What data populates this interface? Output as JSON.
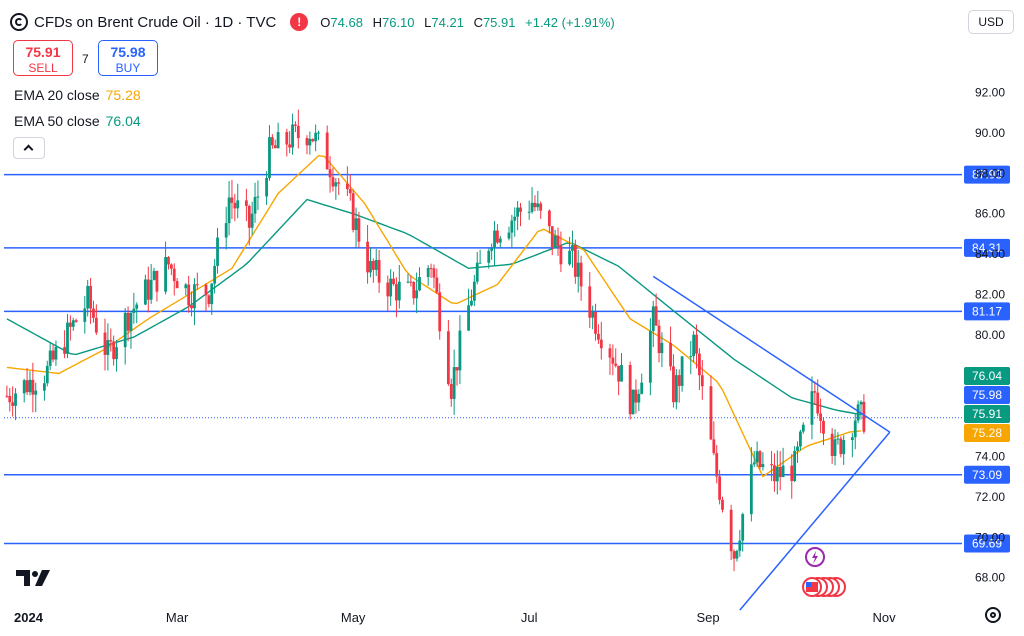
{
  "header": {
    "title": "CFDs on Brent Crude Oil · 1D · TVC",
    "warn_glyph": "!",
    "o_label": "O",
    "o_value": "74.68",
    "h_label": "H",
    "h_value": "76.10",
    "l_label": "L",
    "l_value": "74.21",
    "c_label": "C",
    "c_value": "75.91",
    "change": "+1.42 (+1.91%)"
  },
  "trade": {
    "sell_price": "75.91",
    "sell_label": "SELL",
    "spread": "7",
    "buy_price": "75.98",
    "buy_label": "BUY"
  },
  "indicators": {
    "ema20_label": "EMA 20 close",
    "ema20_value": "75.28",
    "ema50_label": "EMA 50 close",
    "ema50_value": "76.04"
  },
  "currency": "USD",
  "colors": {
    "up": "#089981",
    "down": "#f23645",
    "ema20": "#f7a600",
    "ema50": "#089981",
    "lines": "#2962ff"
  },
  "chart_data": {
    "type": "candlestick",
    "title": "CFDs on Brent Crude Oil · 1D · TVC",
    "ylim": [
      66.8,
      93.6
    ],
    "y_ticks": [
      "68.00",
      "70.00",
      "72.00",
      "74.00",
      "76.00",
      "78.00",
      "80.00",
      "82.00",
      "84.00",
      "86.00",
      "88.00",
      "90.00",
      "92.00"
    ],
    "x_tick_labels": [
      "2024",
      "Mar",
      "May",
      "Jul",
      "Sep",
      "Nov"
    ],
    "x_range": [
      "2024-01-01",
      "2024-11-28"
    ],
    "x_tick_dates": [
      "2024-01-01",
      "2024-03-01",
      "2024-05-01",
      "2024-07-01",
      "2024-09-01",
      "2024-11-01"
    ],
    "horizontal_levels": [
      87.93,
      84.31,
      81.17,
      73.09,
      69.69
    ],
    "level_labels": [
      "87.93",
      "84.31",
      "81.17",
      "73.09",
      "69.69"
    ],
    "price_labels": [
      {
        "text": "76.04",
        "value": 76.04,
        "color": "#089981"
      },
      {
        "text": "75.98",
        "value": 75.98,
        "color": "#2962ff"
      },
      {
        "text": "75.91",
        "value": 75.91,
        "color": "#089981"
      },
      {
        "text": "75.28",
        "value": 75.28,
        "color": "#f7a600"
      }
    ],
    "triangle": {
      "upper": [
        [
          "2024-08-13",
          82.9
        ],
        [
          "2024-11-03",
          75.2
        ]
      ],
      "lower": [
        [
          "2024-09-12",
          66.4
        ],
        [
          "2024-11-03",
          75.2
        ]
      ]
    },
    "close_series": [
      [
        "2024-01-02",
        77.0
      ],
      [
        "2024-01-09",
        77.6
      ],
      [
        "2024-01-16",
        78.2
      ],
      [
        "2024-01-23",
        80.0
      ],
      [
        "2024-01-30",
        81.7
      ],
      [
        "2024-02-06",
        79.0
      ],
      [
        "2024-02-13",
        81.0
      ],
      [
        "2024-02-20",
        82.3
      ],
      [
        "2024-02-27",
        83.5
      ],
      [
        "2024-03-05",
        82.1
      ],
      [
        "2024-03-12",
        82.2
      ],
      [
        "2024-03-19",
        86.8
      ],
      [
        "2024-03-26",
        85.4
      ],
      [
        "2024-04-02",
        89.0
      ],
      [
        "2024-04-09",
        89.7
      ],
      [
        "2024-04-16",
        90.1
      ],
      [
        "2024-04-23",
        88.4
      ],
      [
        "2024-04-30",
        86.3
      ],
      [
        "2024-05-07",
        83.2
      ],
      [
        "2024-05-14",
        82.4
      ],
      [
        "2024-05-21",
        82.0
      ],
      [
        "2024-05-28",
        83.6
      ],
      [
        "2024-06-04",
        77.5
      ],
      [
        "2024-06-11",
        82.0
      ],
      [
        "2024-06-18",
        85.0
      ],
      [
        "2024-06-25",
        85.8
      ],
      [
        "2024-07-02",
        86.6
      ],
      [
        "2024-07-09",
        84.7
      ],
      [
        "2024-07-16",
        83.7
      ],
      [
        "2024-07-23",
        81.0
      ],
      [
        "2024-07-30",
        79.0
      ],
      [
        "2024-08-06",
        76.5
      ],
      [
        "2024-08-13",
        80.7
      ],
      [
        "2024-08-20",
        77.2
      ],
      [
        "2024-08-27",
        79.6
      ],
      [
        "2024-09-03",
        73.7
      ],
      [
        "2024-09-10",
        69.2
      ],
      [
        "2024-09-17",
        73.7
      ],
      [
        "2024-09-24",
        73.0
      ],
      [
        "2024-10-01",
        73.5
      ],
      [
        "2024-10-08",
        77.2
      ],
      [
        "2024-10-15",
        74.2
      ],
      [
        "2024-10-22",
        76.0
      ],
      [
        "2024-10-25",
        75.91
      ]
    ],
    "ema20_series": [
      [
        "2024-01-02",
        78.4
      ],
      [
        "2024-01-20",
        78.1
      ],
      [
        "2024-02-05",
        79.3
      ],
      [
        "2024-02-20",
        80.8
      ],
      [
        "2024-03-05",
        82.0
      ],
      [
        "2024-03-20",
        83.3
      ],
      [
        "2024-04-05",
        87.0
      ],
      [
        "2024-04-20",
        89.0
      ],
      [
        "2024-05-05",
        86.5
      ],
      [
        "2024-05-20",
        83.0
      ],
      [
        "2024-06-05",
        81.5
      ],
      [
        "2024-06-20",
        82.5
      ],
      [
        "2024-07-05",
        85.3
      ],
      [
        "2024-07-20",
        84.2
      ],
      [
        "2024-08-05",
        80.8
      ],
      [
        "2024-08-20",
        79.5
      ],
      [
        "2024-09-05",
        77.6
      ],
      [
        "2024-09-20",
        73.0
      ],
      [
        "2024-10-05",
        74.5
      ],
      [
        "2024-10-20",
        75.2
      ],
      [
        "2024-10-25",
        75.28
      ]
    ],
    "ema50_series": [
      [
        "2024-01-02",
        80.8
      ],
      [
        "2024-01-25",
        79.0
      ],
      [
        "2024-02-15",
        79.9
      ],
      [
        "2024-03-05",
        81.4
      ],
      [
        "2024-03-25",
        83.5
      ],
      [
        "2024-04-15",
        86.7
      ],
      [
        "2024-05-01",
        86.0
      ],
      [
        "2024-05-20",
        85.0
      ],
      [
        "2024-06-10",
        83.3
      ],
      [
        "2024-06-25",
        83.5
      ],
      [
        "2024-07-15",
        84.6
      ],
      [
        "2024-08-01",
        83.4
      ],
      [
        "2024-08-20",
        81.2
      ],
      [
        "2024-09-10",
        78.8
      ],
      [
        "2024-09-30",
        76.9
      ],
      [
        "2024-10-15",
        76.3
      ],
      [
        "2024-10-25",
        76.04
      ]
    ]
  }
}
